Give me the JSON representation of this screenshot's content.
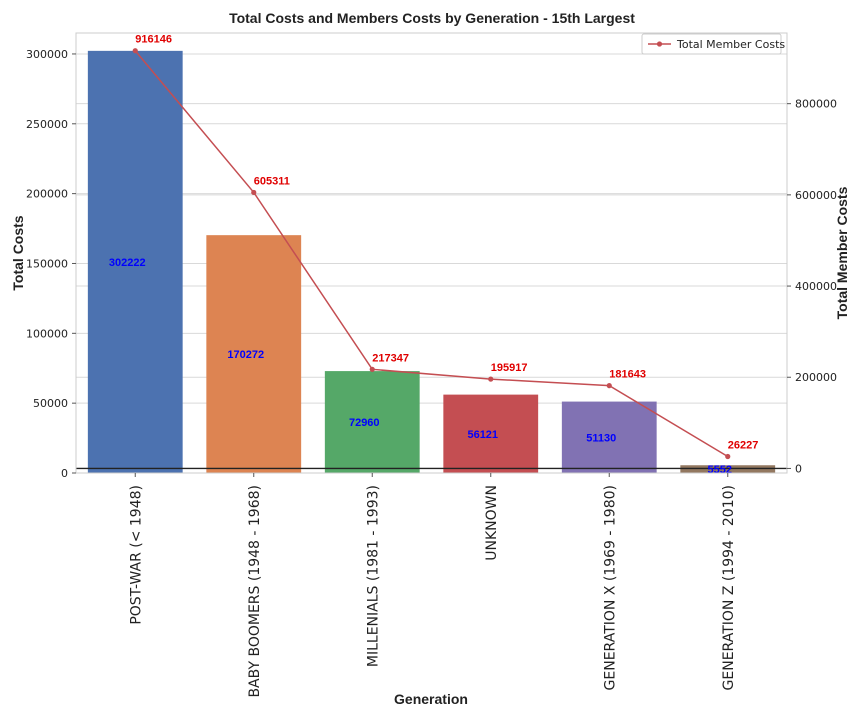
{
  "chart_data": {
    "type": "bar",
    "title": "Total Costs and Members Costs by Generation - 15th Largest",
    "xlabel": "Generation",
    "ylabel": "Total Costs",
    "y2label": "Total Member Costs",
    "categories": [
      "POST-WAR (< 1948)",
      "BABY BOOMERS (1948 - 1968)",
      "MILLENIALS (1981 - 1993)",
      "UNKNOWN",
      "GENERATION X (1969 - 1980)",
      "GENERATION Z (1994 - 2010)"
    ],
    "series": [
      {
        "values": [
          302222,
          170272,
          72960,
          56121,
          51130,
          5552
        ],
        "axis": "left",
        "mark": "bar",
        "colors": [
          "#4c72b0",
          "#dd8452",
          "#55a868",
          "#c44e52",
          "#8172b3",
          "#937860"
        ]
      },
      {
        "name": "Total Member Costs",
        "values": [
          916146,
          605311,
          217347,
          195917,
          181643,
          26227
        ],
        "axis": "right",
        "mark": "line",
        "color": "#c44e52"
      }
    ],
    "ylim": [
      0,
      315000
    ],
    "y2lim": [
      -10000,
      955000
    ],
    "yticks": [
      0,
      50000,
      100000,
      150000,
      200000,
      250000,
      300000
    ],
    "y2ticks": [
      0,
      200000,
      400000,
      600000,
      800000
    ],
    "grid": true,
    "legend_position": "top-right",
    "bar_label_color": "#0000ff",
    "line_label_color": "#e00000"
  }
}
